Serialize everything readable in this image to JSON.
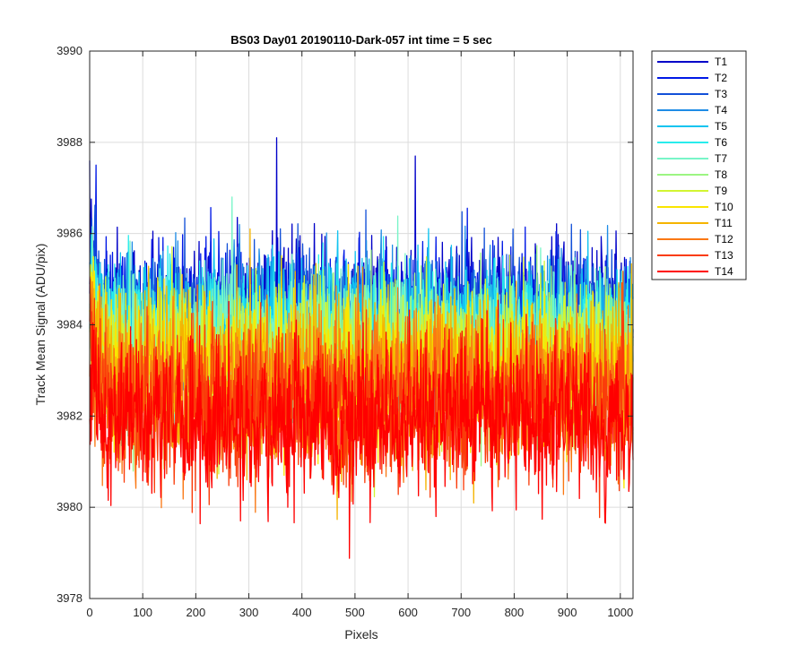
{
  "chart_data": {
    "type": "line",
    "title": "BS03 Day01 20190110-Dark-057 int time = 5 sec",
    "xlabel": "Pixels",
    "ylabel": "Track Mean Signal (ADU/pix)",
    "xlim": [
      0,
      1024
    ],
    "ylim": [
      3978,
      3990
    ],
    "xticks": [
      "0",
      "100",
      "200",
      "300",
      "400",
      "500",
      "600",
      "700",
      "800",
      "900",
      "1000"
    ],
    "yticks": [
      "3978",
      "3980",
      "3982",
      "3984",
      "3986",
      "3988",
      "3990"
    ],
    "grid": true,
    "legend_position": "outside-top-right",
    "n_points": 1024,
    "series": [
      {
        "name": "T1",
        "color": "#0000c8",
        "mean": 3984.3,
        "spread": 0.75,
        "peaks": [
          [
            0,
            3987.6
          ],
          [
            352,
            3988.1
          ],
          [
            613,
            3987.7
          ]
        ]
      },
      {
        "name": "T2",
        "color": "#0018e6",
        "mean": 3984.2,
        "spread": 0.75,
        "peaks": [
          [
            12,
            3987.5
          ]
        ]
      },
      {
        "name": "T3",
        "color": "#1250d8",
        "mean": 3984.1,
        "spread": 0.75,
        "peaks": []
      },
      {
        "name": "T4",
        "color": "#1e8ce6",
        "mean": 3984.0,
        "spread": 0.75,
        "peaks": []
      },
      {
        "name": "T5",
        "color": "#12c4f0",
        "mean": 3983.9,
        "spread": 0.75,
        "peaks": []
      },
      {
        "name": "T6",
        "color": "#28ecec",
        "mean": 3983.8,
        "spread": 0.75,
        "peaks": []
      },
      {
        "name": "T7",
        "color": "#78f5c8",
        "mean": 3983.6,
        "spread": 0.8,
        "peaks": [
          [
            268,
            3986.8
          ]
        ]
      },
      {
        "name": "T8",
        "color": "#9cf582",
        "mean": 3983.4,
        "spread": 0.8,
        "peaks": []
      },
      {
        "name": "T9",
        "color": "#d2f532",
        "mean": 3983.2,
        "spread": 0.8,
        "peaks": []
      },
      {
        "name": "T10",
        "color": "#fae600",
        "mean": 3983.0,
        "spread": 0.8,
        "peaks": []
      },
      {
        "name": "T11",
        "color": "#f5b400",
        "mean": 3982.8,
        "spread": 0.85,
        "peaks": [
          [
            302,
            3986.1
          ]
        ]
      },
      {
        "name": "T12",
        "color": "#fa7814",
        "mean": 3982.5,
        "spread": 0.85,
        "peaks": []
      },
      {
        "name": "T13",
        "color": "#fa3c0a",
        "mean": 3982.2,
        "spread": 0.85,
        "peaks": []
      },
      {
        "name": "T14",
        "color": "#ff0000",
        "mean": 3981.9,
        "spread": 0.85,
        "peaks": []
      }
    ]
  }
}
